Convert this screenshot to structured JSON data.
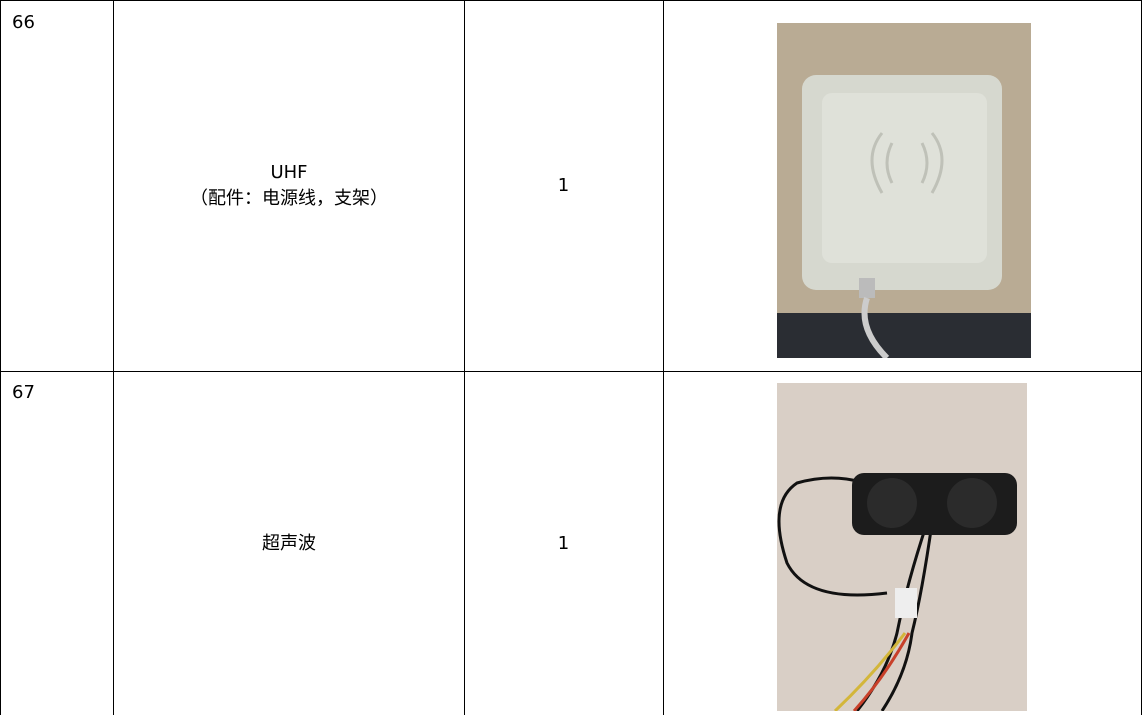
{
  "table": {
    "rows": [
      [
        "66",
        [
          "UHF",
          "（配件：电源线，支架）"
        ],
        "1"
      ],
      [
        "67",
        [
          "超声波"
        ],
        "1"
      ]
    ]
  }
}
